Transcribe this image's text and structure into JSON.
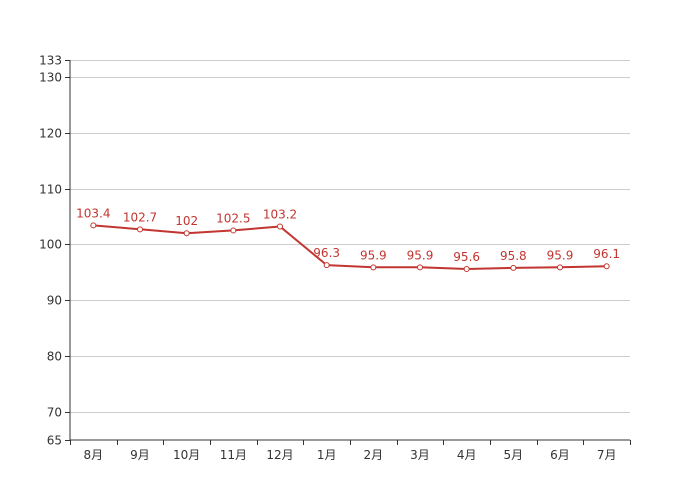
{
  "chart_data": {
    "type": "line",
    "categories": [
      "8月",
      "9月",
      "10月",
      "11月",
      "12月",
      "1月",
      "2月",
      "3月",
      "4月",
      "5月",
      "6月",
      "7月"
    ],
    "series": [
      {
        "values": [
          103.4,
          102.7,
          102,
          102.5,
          103.2,
          96.3,
          95.9,
          95.9,
          95.6,
          95.8,
          95.9,
          96.1
        ],
        "labels": [
          "103.4",
          "102.7",
          "102",
          "102.5",
          "103.2",
          "96.3",
          "95.9",
          "95.9",
          "95.6",
          "95.8",
          "95.9",
          "96.1"
        ]
      }
    ],
    "ylim": [
      65,
      133
    ],
    "yticks": [
      65,
      70,
      80,
      90,
      100,
      110,
      120,
      130,
      133
    ],
    "grid": true,
    "colors": {
      "line": "#c23531",
      "grid": "#cccccc",
      "axis": "#333333"
    }
  }
}
